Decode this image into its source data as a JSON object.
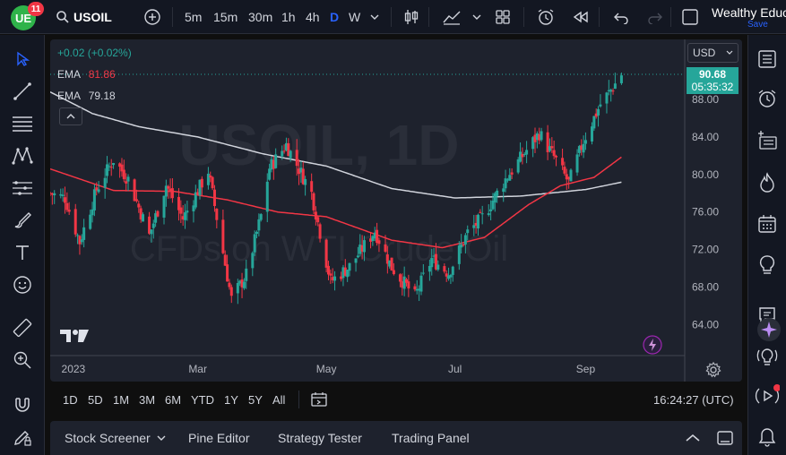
{
  "header": {
    "logo_text": "UE",
    "notification_count": "11",
    "symbol": "USOIL",
    "timeframes": [
      "5m",
      "15m",
      "30m",
      "1h",
      "4h",
      "D",
      "W"
    ],
    "active_timeframe": "D",
    "account_name": "Wealthy Educ",
    "save_label": "Save"
  },
  "chart": {
    "watermark_symbol": "USOIL, 1D",
    "watermark_name": "CFDs on WTI Crude Oil",
    "change_text": "+0.02 (+0.02%)",
    "ema_label_1": "EMA",
    "ema_value_1": "81.86",
    "ema_label_2": "EMA",
    "ema_value_2": "79.18",
    "currency": "USD",
    "last_price": "90.68",
    "countdown": "05:35:32",
    "collapse_icon": "chevron-up-icon"
  },
  "chart_data": {
    "type": "candlestick",
    "title": "",
    "ylim": [
      60.7,
      94.4
    ],
    "y_ticks": [
      88.0,
      84.0,
      80.0,
      76.0,
      72.0,
      68.0,
      64.0
    ],
    "x_ticks": [
      "2023",
      "Mar",
      "May",
      "Jul",
      "Sep"
    ],
    "x_tick_positions": [
      "2023-01-01",
      "2023-03-01",
      "2023-05-01",
      "2023-07-01",
      "2023-09-01"
    ],
    "x_range": [
      "2022-12-21",
      "2023-10-18"
    ],
    "close_anchors": [
      {
        "date": "2022-12-21",
        "close": 78.0
      },
      {
        "date": "2022-12-28",
        "close": 77.5
      },
      {
        "date": "2023-01-04",
        "close": 72.8
      },
      {
        "date": "2023-01-12",
        "close": 78.4
      },
      {
        "date": "2023-01-20",
        "close": 81.6
      },
      {
        "date": "2023-01-27",
        "close": 79.5
      },
      {
        "date": "2023-02-06",
        "close": 73.5
      },
      {
        "date": "2023-02-14",
        "close": 78.9
      },
      {
        "date": "2023-02-22",
        "close": 75.3
      },
      {
        "date": "2023-03-06",
        "close": 80.4
      },
      {
        "date": "2023-03-17",
        "close": 66.7
      },
      {
        "date": "2023-03-24",
        "close": 69.3
      },
      {
        "date": "2023-03-31",
        "close": 75.6
      },
      {
        "date": "2023-04-04",
        "close": 80.7
      },
      {
        "date": "2023-04-12",
        "close": 83.2
      },
      {
        "date": "2023-04-24",
        "close": 78.0
      },
      {
        "date": "2023-05-03",
        "close": 68.6
      },
      {
        "date": "2023-05-12",
        "close": 70.2
      },
      {
        "date": "2023-05-24",
        "close": 74.0
      },
      {
        "date": "2023-06-01",
        "close": 70.1
      },
      {
        "date": "2023-06-12",
        "close": 67.0
      },
      {
        "date": "2023-06-20",
        "close": 71.0
      },
      {
        "date": "2023-06-28",
        "close": 69.5
      },
      {
        "date": "2023-07-07",
        "close": 73.8
      },
      {
        "date": "2023-07-14",
        "close": 75.4
      },
      {
        "date": "2023-07-25",
        "close": 79.5
      },
      {
        "date": "2023-08-04",
        "close": 82.6
      },
      {
        "date": "2023-08-10",
        "close": 84.4
      },
      {
        "date": "2023-08-18",
        "close": 81.5
      },
      {
        "date": "2023-08-24",
        "close": 79.1
      },
      {
        "date": "2023-08-31",
        "close": 83.6
      },
      {
        "date": "2023-09-08",
        "close": 87.5
      },
      {
        "date": "2023-09-13",
        "close": 89.0
      },
      {
        "date": "2023-09-18",
        "close": 90.7
      }
    ],
    "ema_fast_anchors": [
      {
        "date": "2022-12-21",
        "value": 80.6
      },
      {
        "date": "2023-01-20",
        "value": 78.3
      },
      {
        "date": "2023-02-18",
        "value": 78.2
      },
      {
        "date": "2023-03-15",
        "value": 77.3
      },
      {
        "date": "2023-04-08",
        "value": 76.0
      },
      {
        "date": "2023-05-01",
        "value": 75.5
      },
      {
        "date": "2023-06-01",
        "value": 73.0
      },
      {
        "date": "2023-06-25",
        "value": 72.2
      },
      {
        "date": "2023-07-15",
        "value": 73.3
      },
      {
        "date": "2023-08-05",
        "value": 76.8
      },
      {
        "date": "2023-08-20",
        "value": 78.8
      },
      {
        "date": "2023-09-05",
        "value": 79.7
      },
      {
        "date": "2023-09-18",
        "value": 81.86
      }
    ],
    "ema_slow_anchors": [
      {
        "date": "2022-12-21",
        "value": 88.8
      },
      {
        "date": "2023-01-10",
        "value": 86.5
      },
      {
        "date": "2023-02-01",
        "value": 85.1
      },
      {
        "date": "2023-03-01",
        "value": 84.0
      },
      {
        "date": "2023-04-01",
        "value": 82.2
      },
      {
        "date": "2023-05-01",
        "value": 80.9
      },
      {
        "date": "2023-06-01",
        "value": 78.5
      },
      {
        "date": "2023-07-01",
        "value": 77.5
      },
      {
        "date": "2023-08-01",
        "value": 77.7
      },
      {
        "date": "2023-09-01",
        "value": 78.4
      },
      {
        "date": "2023-09-18",
        "value": 79.18
      }
    ],
    "last_price": 90.68
  },
  "axis": {
    "settings_icon": "gear-icon"
  },
  "range_bar": {
    "ranges": [
      "1D",
      "5D",
      "1M",
      "3M",
      "6M",
      "YTD",
      "1Y",
      "5Y",
      "All"
    ],
    "time_display": "16:24:27 (UTC)"
  },
  "bottom_panel": {
    "tabs": [
      "Stock Screener",
      "Pine Editor",
      "Strategy Tester",
      "Trading Panel"
    ]
  }
}
